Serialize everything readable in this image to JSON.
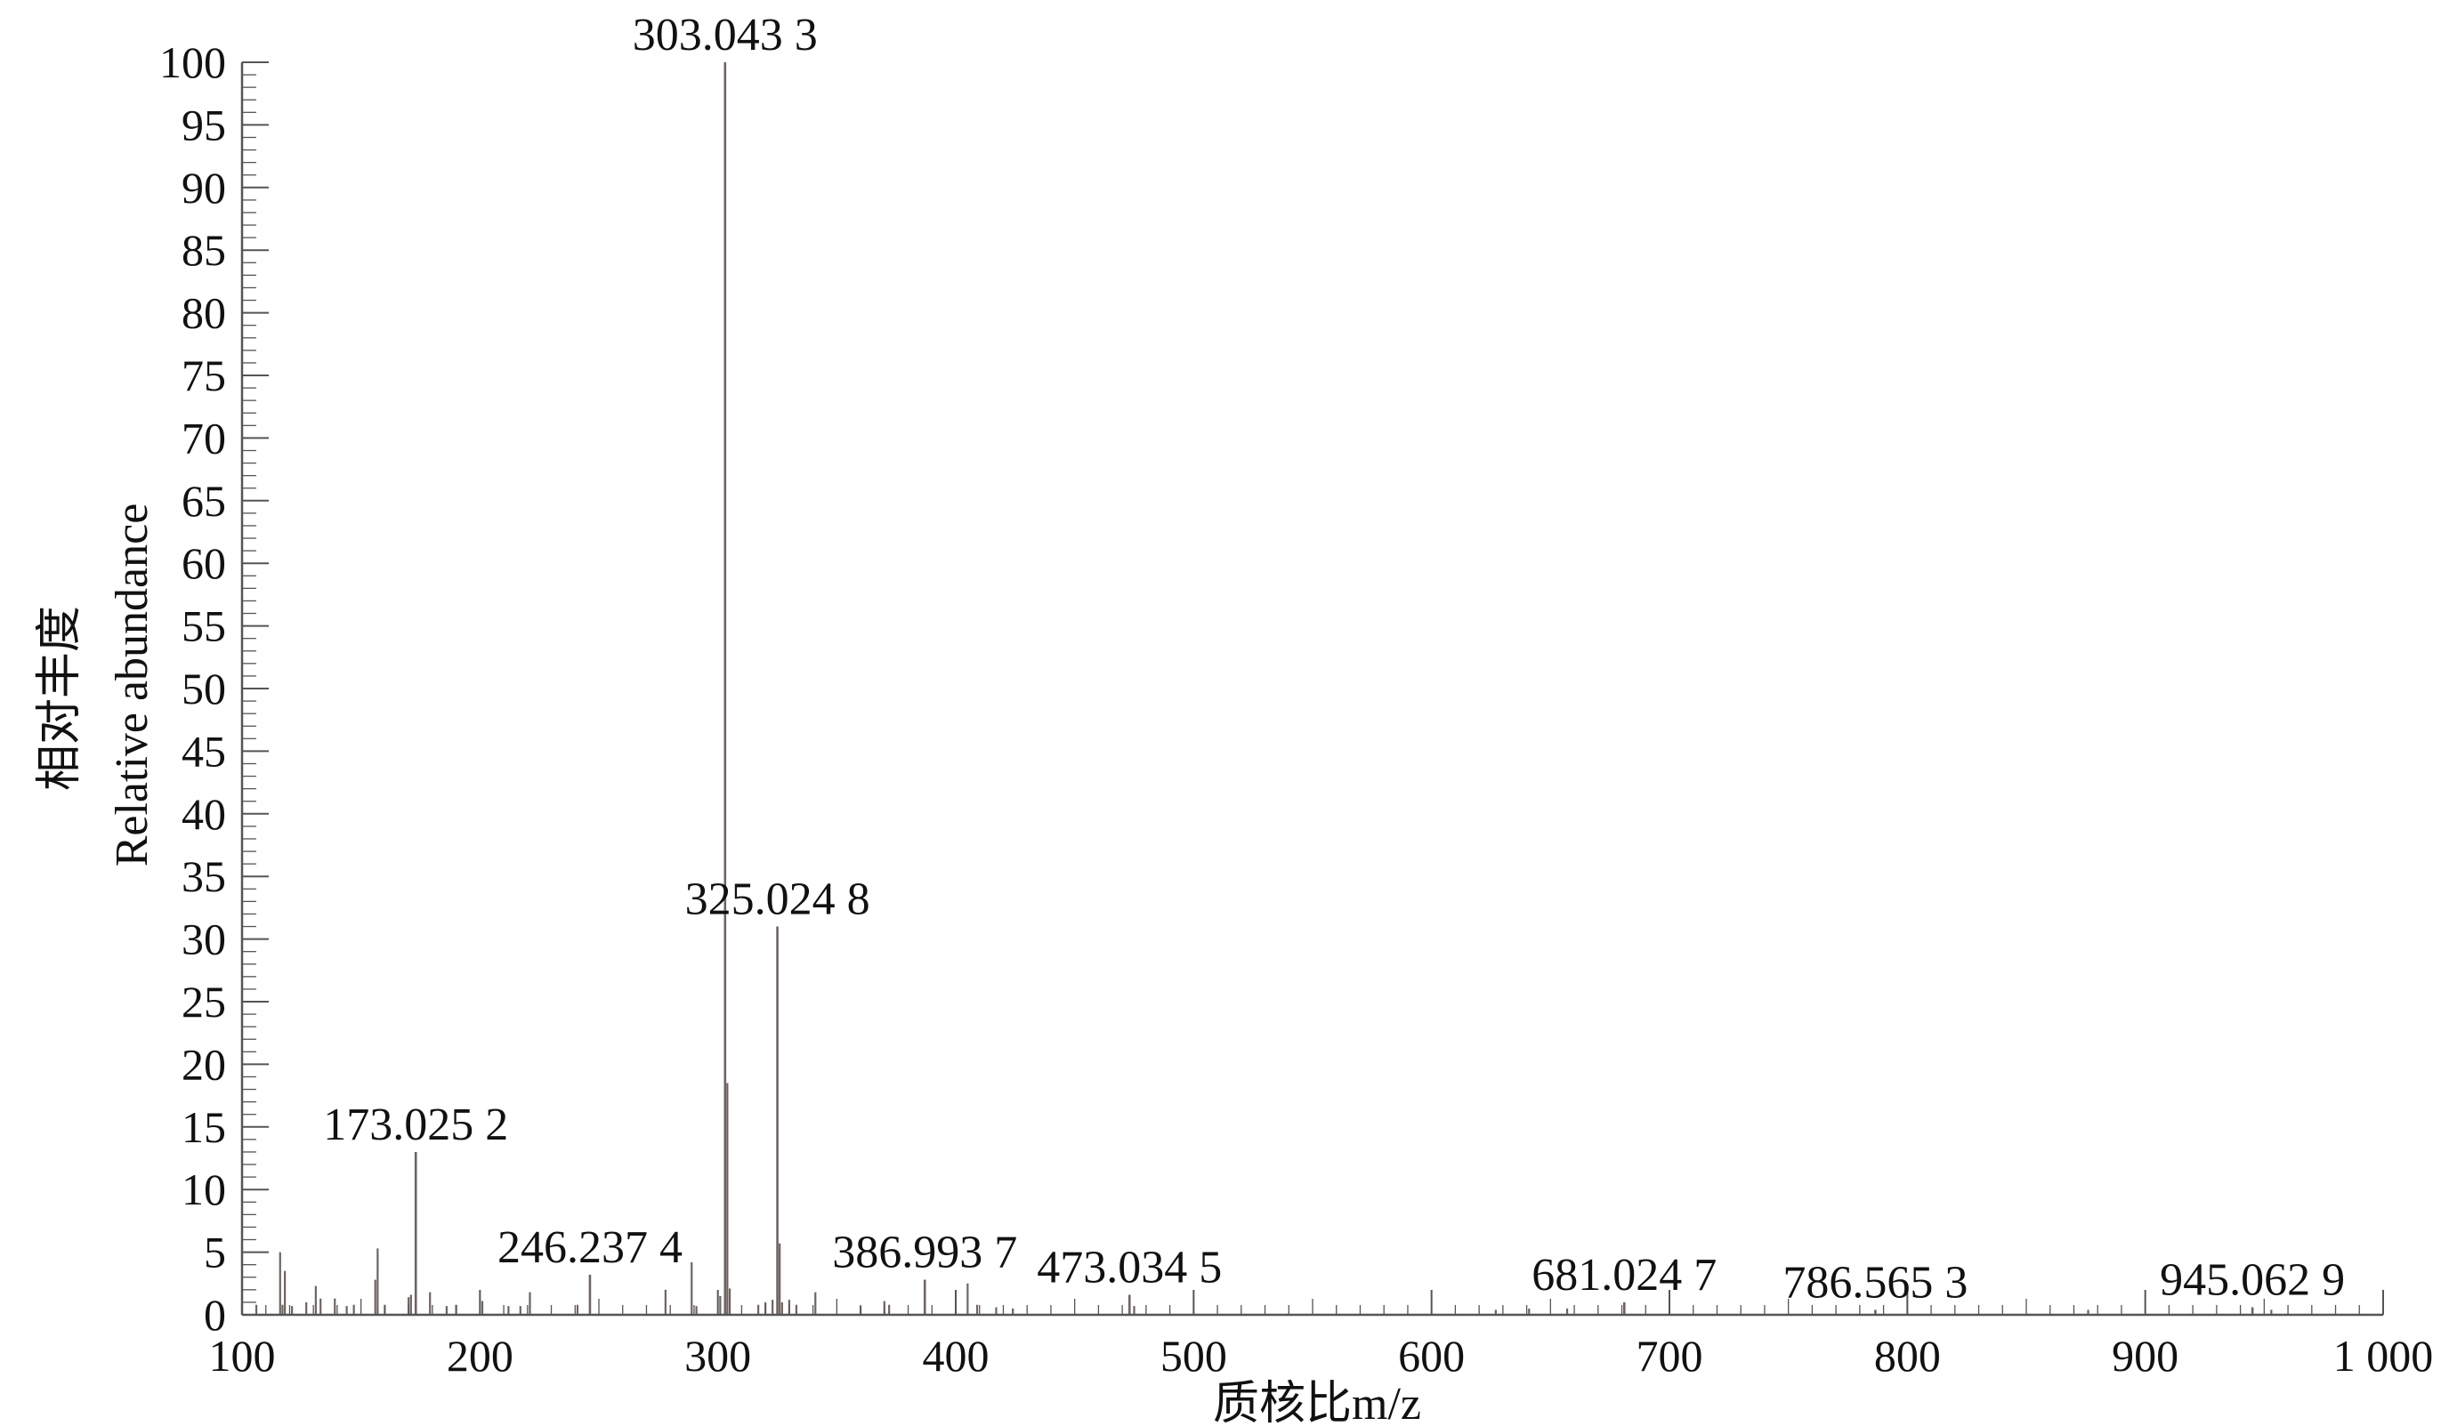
{
  "chart_data": {
    "type": "bar",
    "subtype": "mass-spectrum",
    "title": "",
    "xlabel": "质核比m/z",
    "ylabel": "Relative abundance",
    "ylabel_zh": "相对丰度",
    "xlim": [
      100,
      1000
    ],
    "ylim": [
      0,
      100
    ],
    "x_ticks": [
      {
        "value": 100,
        "label": "100"
      },
      {
        "value": 200,
        "label": "200"
      },
      {
        "value": 300,
        "label": "300"
      },
      {
        "value": 400,
        "label": "400"
      },
      {
        "value": 500,
        "label": "500"
      },
      {
        "value": 600,
        "label": "600"
      },
      {
        "value": 700,
        "label": "700"
      },
      {
        "value": 800,
        "label": "800"
      },
      {
        "value": 900,
        "label": "900"
      },
      {
        "value": 1000,
        "label": "1 000"
      }
    ],
    "y_ticks": [
      0,
      5,
      10,
      15,
      20,
      25,
      30,
      35,
      40,
      45,
      50,
      55,
      60,
      65,
      70,
      75,
      80,
      85,
      90,
      95,
      100
    ],
    "grid": false,
    "legend": "none",
    "colors": {
      "peaks": "#6e6462",
      "axes": "#555555",
      "text": "#111111"
    },
    "peaks": [
      {
        "x": 106,
        "y": 0.8
      },
      {
        "x": 116,
        "y": 5.0
      },
      {
        "x": 117,
        "y": 0.8
      },
      {
        "x": 118,
        "y": 3.5
      },
      {
        "x": 121,
        "y": 0.7
      },
      {
        "x": 127,
        "y": 1.0
      },
      {
        "x": 131,
        "y": 2.3
      },
      {
        "x": 133,
        "y": 1.3
      },
      {
        "x": 139,
        "y": 1.3
      },
      {
        "x": 144,
        "y": 0.7
      },
      {
        "x": 147,
        "y": 0.8
      },
      {
        "x": 156,
        "y": 2.8
      },
      {
        "x": 157,
        "y": 5.3
      },
      {
        "x": 160,
        "y": 0.8
      },
      {
        "x": 170,
        "y": 1.4
      },
      {
        "x": 171,
        "y": 1.6
      },
      {
        "x": 173.0252,
        "y": 13.0,
        "label": "173.025 2"
      },
      {
        "x": 179,
        "y": 1.8
      },
      {
        "x": 186,
        "y": 0.7
      },
      {
        "x": 190,
        "y": 0.8
      },
      {
        "x": 201,
        "y": 1.1
      },
      {
        "x": 212,
        "y": 0.7
      },
      {
        "x": 217,
        "y": 0.7
      },
      {
        "x": 221,
        "y": 1.8
      },
      {
        "x": 246.2374,
        "y": 3.2,
        "label": "246.237 4"
      },
      {
        "x": 241,
        "y": 0.8
      },
      {
        "x": 278,
        "y": 2.0
      },
      {
        "x": 289,
        "y": 4.2
      },
      {
        "x": 291,
        "y": 0.7
      },
      {
        "x": 301,
        "y": 1.5
      },
      {
        "x": 303.0433,
        "y": 100.0,
        "label": "303.043 3"
      },
      {
        "x": 304,
        "y": 18.5
      },
      {
        "x": 305,
        "y": 2.1
      },
      {
        "x": 317,
        "y": 0.8
      },
      {
        "x": 320,
        "y": 1.0
      },
      {
        "x": 323,
        "y": 1.2
      },
      {
        "x": 325.0248,
        "y": 31.0,
        "label": "325.024 8"
      },
      {
        "x": 326,
        "y": 5.7
      },
      {
        "x": 327,
        "y": 1.0
      },
      {
        "x": 330,
        "y": 1.2
      },
      {
        "x": 333,
        "y": 0.8
      },
      {
        "x": 341,
        "y": 1.8
      },
      {
        "x": 360,
        "y": 0.7
      },
      {
        "x": 370,
        "y": 1.1
      },
      {
        "x": 372,
        "y": 0.8
      },
      {
        "x": 386.9937,
        "y": 2.8,
        "label": "386.993 7"
      },
      {
        "x": 405,
        "y": 2.5
      },
      {
        "x": 409,
        "y": 0.8
      },
      {
        "x": 417,
        "y": 0.6
      },
      {
        "x": 424,
        "y": 0.5
      },
      {
        "x": 473.0345,
        "y": 1.6,
        "label": "473.034 5"
      },
      {
        "x": 475,
        "y": 0.7
      },
      {
        "x": 627,
        "y": 0.4
      },
      {
        "x": 641,
        "y": 0.5
      },
      {
        "x": 657,
        "y": 0.5
      },
      {
        "x": 681.0247,
        "y": 1.0,
        "label": "681.024 7"
      },
      {
        "x": 786.5653,
        "y": 0.4,
        "label": "786.565 3"
      },
      {
        "x": 876,
        "y": 0.4
      },
      {
        "x": 945.0629,
        "y": 0.6,
        "label": "945.062 9"
      },
      {
        "x": 953,
        "y": 0.4
      }
    ]
  }
}
